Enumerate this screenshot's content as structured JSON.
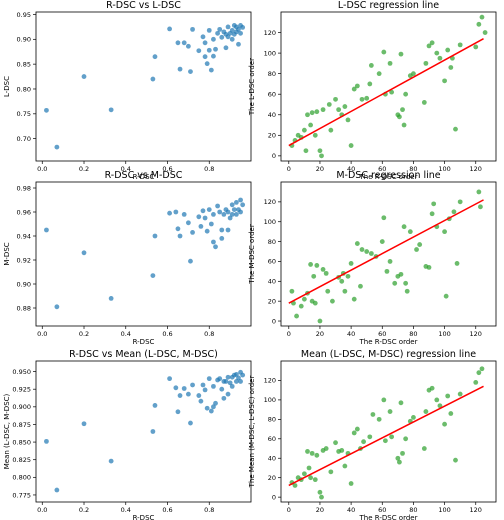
{
  "chart_data": [
    {
      "type": "scatter",
      "title": "R-DSC vs L-DSC",
      "xlabel": "R-DSC",
      "ylabel": "L-DSC",
      "xlim": [
        -0.03,
        1.0
      ],
      "ylim": [
        0.655,
        0.955
      ],
      "xticks": [
        0.0,
        0.2,
        0.4,
        0.6,
        0.8
      ],
      "xtick_labels": [
        "0.0",
        "0.2",
        "0.4",
        "0.6",
        "0.8"
      ],
      "yticks": [
        0.7,
        0.75,
        0.8,
        0.85,
        0.9,
        0.95
      ],
      "ytick_labels": [
        "0.70",
        "0.75",
        "0.80",
        "0.85",
        "0.90",
        "0.95"
      ],
      "color": "#1f77b4",
      "points": [
        [
          0.02,
          0.757
        ],
        [
          0.07,
          0.683
        ],
        [
          0.2,
          0.825
        ],
        [
          0.33,
          0.758
        ],
        [
          0.53,
          0.82
        ],
        [
          0.54,
          0.865
        ],
        [
          0.61,
          0.921
        ],
        [
          0.65,
          0.893
        ],
        [
          0.66,
          0.84
        ],
        [
          0.68,
          0.893
        ],
        [
          0.7,
          0.886
        ],
        [
          0.71,
          0.835
        ],
        [
          0.72,
          0.92
        ],
        [
          0.75,
          0.877
        ],
        [
          0.77,
          0.905
        ],
        [
          0.78,
          0.893
        ],
        [
          0.78,
          0.865
        ],
        [
          0.79,
          0.851
        ],
        [
          0.8,
          0.878
        ],
        [
          0.8,
          0.918
        ],
        [
          0.81,
          0.838
        ],
        [
          0.82,
          0.866
        ],
        [
          0.82,
          0.9
        ],
        [
          0.83,
          0.88
        ],
        [
          0.84,
          0.912
        ],
        [
          0.85,
          0.92
        ],
        [
          0.86,
          0.904
        ],
        [
          0.87,
          0.915
        ],
        [
          0.88,
          0.91
        ],
        [
          0.89,
          0.925
        ],
        [
          0.89,
          0.905
        ],
        [
          0.9,
          0.912
        ],
        [
          0.91,
          0.918
        ],
        [
          0.91,
          0.9
        ],
        [
          0.92,
          0.928
        ],
        [
          0.92,
          0.91
        ],
        [
          0.93,
          0.915
        ],
        [
          0.93,
          0.925
        ],
        [
          0.94,
          0.92
        ],
        [
          0.95,
          0.928
        ],
        [
          0.95,
          0.912
        ],
        [
          0.96,
          0.924
        ],
        [
          0.94,
          0.89
        ],
        [
          0.88,
          0.883
        ]
      ]
    },
    {
      "type": "scatter",
      "title": "L-DSC regression line",
      "xlabel": "The R-DSC order",
      "ylabel": "The L-DSC order",
      "xlim": [
        -5,
        133
      ],
      "ylim": [
        -5,
        140
      ],
      "xticks": [
        0,
        20,
        40,
        60,
        80,
        100,
        120
      ],
      "xtick_labels": [
        "0",
        "20",
        "40",
        "60",
        "80",
        "100",
        "120"
      ],
      "yticks": [
        0,
        20,
        40,
        60,
        80,
        100,
        120
      ],
      "ytick_labels": [
        "0",
        "20",
        "40",
        "60",
        "80",
        "100",
        "120"
      ],
      "color": "#2ca02c",
      "regression": {
        "x": [
          0,
          125
        ],
        "y": [
          10,
          114
        ],
        "color": "#ff0000"
      },
      "points": [
        [
          2,
          10
        ],
        [
          4,
          15
        ],
        [
          6,
          20
        ],
        [
          8,
          18
        ],
        [
          10,
          25
        ],
        [
          11,
          5
        ],
        [
          12,
          40
        ],
        [
          14,
          30
        ],
        [
          15,
          42
        ],
        [
          17,
          20
        ],
        [
          18,
          43
        ],
        [
          20,
          5
        ],
        [
          21,
          0
        ],
        [
          22,
          45
        ],
        [
          26,
          50
        ],
        [
          27,
          25
        ],
        [
          30,
          55
        ],
        [
          32,
          45
        ],
        [
          34,
          40
        ],
        [
          36,
          48
        ],
        [
          38,
          35
        ],
        [
          40,
          10
        ],
        [
          42,
          65
        ],
        [
          44,
          68
        ],
        [
          47,
          55
        ],
        [
          50,
          56
        ],
        [
          52,
          70
        ],
        [
          53,
          88
        ],
        [
          58,
          80
        ],
        [
          61,
          101
        ],
        [
          62,
          60
        ],
        [
          65,
          90
        ],
        [
          66,
          62
        ],
        [
          70,
          40
        ],
        [
          71,
          38
        ],
        [
          72,
          99
        ],
        [
          73,
          45
        ],
        [
          74,
          30
        ],
        [
          75,
          60
        ],
        [
          78,
          78
        ],
        [
          80,
          80
        ],
        [
          87,
          52
        ],
        [
          88,
          90
        ],
        [
          90,
          107
        ],
        [
          92,
          110
        ],
        [
          95,
          100
        ],
        [
          97,
          95
        ],
        [
          100,
          73
        ],
        [
          102,
          103
        ],
        [
          104,
          86
        ],
        [
          105,
          95
        ],
        [
          107,
          26
        ],
        [
          110,
          108
        ],
        [
          120,
          106
        ],
        [
          122,
          128
        ],
        [
          124,
          135
        ],
        [
          126,
          120
        ]
      ]
    },
    {
      "type": "scatter",
      "title": "R-DSC vs M-DSC",
      "xlabel": "R-DSC",
      "ylabel": "M-DSC",
      "xlim": [
        -0.03,
        1.0
      ],
      "ylim": [
        0.865,
        0.985
      ],
      "xticks": [
        0.0,
        0.2,
        0.4,
        0.6,
        0.8
      ],
      "xtick_labels": [
        "0.0",
        "0.2",
        "0.4",
        "0.6",
        "0.8"
      ],
      "yticks": [
        0.88,
        0.9,
        0.92,
        0.94,
        0.96,
        0.98
      ],
      "ytick_labels": [
        "0.88",
        "0.90",
        "0.92",
        "0.94",
        "0.96",
        "0.98"
      ],
      "color": "#1f77b4",
      "points": [
        [
          0.02,
          0.945
        ],
        [
          0.07,
          0.881
        ],
        [
          0.2,
          0.926
        ],
        [
          0.33,
          0.888
        ],
        [
          0.53,
          0.907
        ],
        [
          0.54,
          0.94
        ],
        [
          0.61,
          0.959
        ],
        [
          0.64,
          0.96
        ],
        [
          0.65,
          0.946
        ],
        [
          0.66,
          0.94
        ],
        [
          0.68,
          0.958
        ],
        [
          0.7,
          0.951
        ],
        [
          0.71,
          0.919
        ],
        [
          0.72,
          0.943
        ],
        [
          0.75,
          0.956
        ],
        [
          0.76,
          0.948
        ],
        [
          0.77,
          0.961
        ],
        [
          0.78,
          0.955
        ],
        [
          0.79,
          0.944
        ],
        [
          0.8,
          0.962
        ],
        [
          0.81,
          0.95
        ],
        [
          0.82,
          0.935
        ],
        [
          0.82,
          0.958
        ],
        [
          0.83,
          0.931
        ],
        [
          0.84,
          0.965
        ],
        [
          0.85,
          0.96
        ],
        [
          0.86,
          0.945
        ],
        [
          0.87,
          0.958
        ],
        [
          0.88,
          0.962
        ],
        [
          0.89,
          0.96
        ],
        [
          0.9,
          0.955
        ],
        [
          0.91,
          0.966
        ],
        [
          0.91,
          0.958
        ],
        [
          0.92,
          0.962
        ],
        [
          0.93,
          0.968
        ],
        [
          0.93,
          0.958
        ],
        [
          0.94,
          0.962
        ],
        [
          0.95,
          0.97
        ],
        [
          0.95,
          0.96
        ],
        [
          0.96,
          0.966
        ],
        [
          0.89,
          0.945
        ],
        [
          0.86,
          0.938
        ]
      ]
    },
    {
      "type": "scatter",
      "title": "M-DSC regression line",
      "xlabel": "The R-DSC order",
      "ylabel": "The M-DSC order",
      "xlim": [
        -5,
        133
      ],
      "ylim": [
        -5,
        140
      ],
      "xticks": [
        0,
        20,
        40,
        60,
        80,
        100,
        120
      ],
      "xtick_labels": [
        "0",
        "20",
        "40",
        "60",
        "80",
        "100",
        "120"
      ],
      "yticks": [
        0,
        20,
        40,
        60,
        80,
        100,
        120
      ],
      "ytick_labels": [
        "0",
        "20",
        "40",
        "60",
        "80",
        "100",
        "120"
      ],
      "color": "#2ca02c",
      "regression": {
        "x": [
          0,
          125
        ],
        "y": [
          18,
          122
        ],
        "color": "#ff0000"
      },
      "points": [
        [
          2,
          30
        ],
        [
          3,
          18
        ],
        [
          5,
          5
        ],
        [
          8,
          15
        ],
        [
          10,
          22
        ],
        [
          12,
          28
        ],
        [
          14,
          57
        ],
        [
          15,
          20
        ],
        [
          16,
          45
        ],
        [
          17,
          18
        ],
        [
          18,
          56
        ],
        [
          20,
          0
        ],
        [
          22,
          52
        ],
        [
          24,
          48
        ],
        [
          25,
          30
        ],
        [
          28,
          20
        ],
        [
          32,
          44
        ],
        [
          34,
          40
        ],
        [
          35,
          48
        ],
        [
          36,
          30
        ],
        [
          38,
          45
        ],
        [
          40,
          58
        ],
        [
          42,
          22
        ],
        [
          44,
          78
        ],
        [
          46,
          35
        ],
        [
          47,
          72
        ],
        [
          50,
          70
        ],
        [
          53,
          68
        ],
        [
          56,
          65
        ],
        [
          60,
          80
        ],
        [
          61,
          104
        ],
        [
          63,
          50
        ],
        [
          65,
          60
        ],
        [
          68,
          38
        ],
        [
          70,
          45
        ],
        [
          72,
          47
        ],
        [
          74,
          95
        ],
        [
          75,
          38
        ],
        [
          76,
          30
        ],
        [
          78,
          90
        ],
        [
          82,
          72
        ],
        [
          84,
          77
        ],
        [
          88,
          55
        ],
        [
          90,
          54
        ],
        [
          92,
          108
        ],
        [
          93,
          118
        ],
        [
          95,
          95
        ],
        [
          100,
          90
        ],
        [
          101,
          25
        ],
        [
          103,
          103
        ],
        [
          106,
          110
        ],
        [
          108,
          58
        ],
        [
          110,
          120
        ],
        [
          122,
          130
        ],
        [
          123,
          115
        ]
      ]
    },
    {
      "type": "scatter",
      "title": "R-DSC vs Mean (L-DSC, M-DSC)",
      "xlabel": "R-DSC",
      "ylabel": "Mean (L-DSC, M-DSC)",
      "xlim": [
        -0.03,
        1.0
      ],
      "ylim": [
        0.765,
        0.965
      ],
      "xticks": [
        0.0,
        0.2,
        0.4,
        0.6,
        0.8
      ],
      "xtick_labels": [
        "0.0",
        "0.2",
        "0.4",
        "0.6",
        "0.8"
      ],
      "yticks": [
        0.775,
        0.8,
        0.825,
        0.85,
        0.875,
        0.9,
        0.925,
        0.95
      ],
      "ytick_labels": [
        "0.775",
        "0.800",
        "0.825",
        "0.850",
        "0.875",
        "0.900",
        "0.925",
        "0.950"
      ],
      "color": "#1f77b4",
      "points": [
        [
          0.02,
          0.851
        ],
        [
          0.07,
          0.782
        ],
        [
          0.2,
          0.876
        ],
        [
          0.33,
          0.823
        ],
        [
          0.53,
          0.865
        ],
        [
          0.54,
          0.902
        ],
        [
          0.61,
          0.94
        ],
        [
          0.64,
          0.927
        ],
        [
          0.65,
          0.893
        ],
        [
          0.66,
          0.916
        ],
        [
          0.68,
          0.926
        ],
        [
          0.7,
          0.918
        ],
        [
          0.71,
          0.877
        ],
        [
          0.72,
          0.931
        ],
        [
          0.75,
          0.916
        ],
        [
          0.76,
          0.908
        ],
        [
          0.77,
          0.931
        ],
        [
          0.78,
          0.924
        ],
        [
          0.79,
          0.898
        ],
        [
          0.8,
          0.94
        ],
        [
          0.81,
          0.894
        ],
        [
          0.82,
          0.9
        ],
        [
          0.82,
          0.929
        ],
        [
          0.83,
          0.905
        ],
        [
          0.84,
          0.938
        ],
        [
          0.85,
          0.94
        ],
        [
          0.86,
          0.925
        ],
        [
          0.87,
          0.936
        ],
        [
          0.88,
          0.936
        ],
        [
          0.89,
          0.942
        ],
        [
          0.9,
          0.934
        ],
        [
          0.91,
          0.942
        ],
        [
          0.91,
          0.929
        ],
        [
          0.92,
          0.945
        ],
        [
          0.93,
          0.946
        ],
        [
          0.93,
          0.936
        ],
        [
          0.94,
          0.941
        ],
        [
          0.95,
          0.949
        ],
        [
          0.95,
          0.936
        ],
        [
          0.96,
          0.945
        ],
        [
          0.89,
          0.918
        ],
        [
          0.87,
          0.912
        ]
      ]
    },
    {
      "type": "scatter",
      "title": "Mean (L-DSC, M-DSC) regression line",
      "xlabel": "The R-DSC order",
      "ylabel": "The Mean (M-DSC, L-DSC) order",
      "xlim": [
        -5,
        133
      ],
      "ylim": [
        -5,
        140
      ],
      "xticks": [
        0,
        20,
        40,
        60,
        80,
        100,
        120
      ],
      "xtick_labels": [
        "0",
        "20",
        "40",
        "60",
        "80",
        "100",
        "120"
      ],
      "yticks": [
        0,
        20,
        40,
        60,
        80,
        100,
        120
      ],
      "ytick_labels": [
        "0",
        "20",
        "40",
        "60",
        "80",
        "100",
        "120"
      ],
      "color": "#2ca02c",
      "regression": {
        "x": [
          0,
          125
        ],
        "y": [
          12,
          114
        ],
        "color": "#ff0000"
      },
      "points": [
        [
          2,
          15
        ],
        [
          4,
          12
        ],
        [
          6,
          20
        ],
        [
          8,
          18
        ],
        [
          10,
          24
        ],
        [
          12,
          47
        ],
        [
          13,
          30
        ],
        [
          14,
          20
        ],
        [
          15,
          45
        ],
        [
          17,
          18
        ],
        [
          18,
          43
        ],
        [
          20,
          5
        ],
        [
          21,
          0
        ],
        [
          22,
          48
        ],
        [
          24,
          50
        ],
        [
          27,
          26
        ],
        [
          30,
          56
        ],
        [
          32,
          47
        ],
        [
          34,
          48
        ],
        [
          36,
          32
        ],
        [
          38,
          45
        ],
        [
          40,
          14
        ],
        [
          42,
          66
        ],
        [
          44,
          70
        ],
        [
          46,
          50
        ],
        [
          48,
          57
        ],
        [
          52,
          62
        ],
        [
          54,
          85
        ],
        [
          58,
          80
        ],
        [
          61,
          100
        ],
        [
          62,
          58
        ],
        [
          65,
          88
        ],
        [
          66,
          62
        ],
        [
          70,
          40
        ],
        [
          71,
          36
        ],
        [
          72,
          97
        ],
        [
          73,
          45
        ],
        [
          75,
          60
        ],
        [
          78,
          78
        ],
        [
          80,
          82
        ],
        [
          87,
          50
        ],
        [
          88,
          88
        ],
        [
          90,
          110
        ],
        [
          92,
          112
        ],
        [
          95,
          100
        ],
        [
          97,
          94
        ],
        [
          100,
          75
        ],
        [
          102,
          104
        ],
        [
          104,
          86
        ],
        [
          107,
          38
        ],
        [
          110,
          106
        ],
        [
          120,
          118
        ],
        [
          122,
          128
        ],
        [
          124,
          132
        ]
      ]
    }
  ]
}
